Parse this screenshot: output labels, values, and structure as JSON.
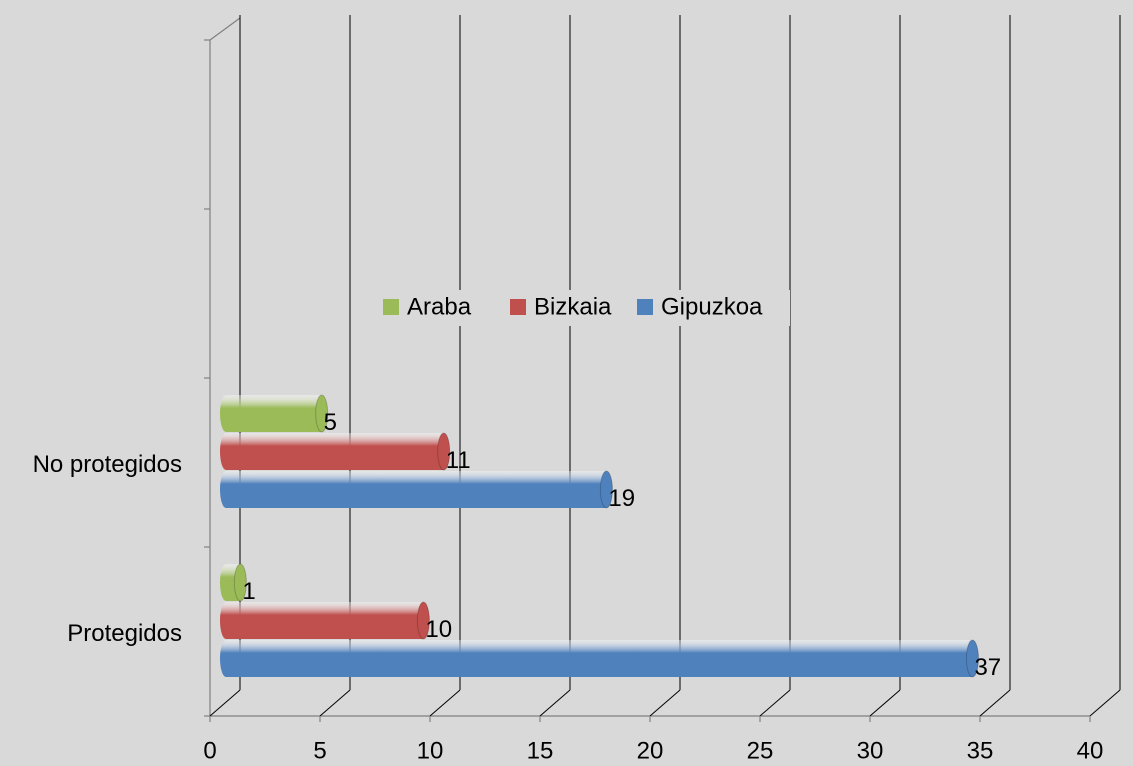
{
  "chart_data": {
    "type": "bar3d_horizontal",
    "categories": [
      "Protegidos",
      "No protegidos",
      null,
      null
    ],
    "series": [
      {
        "name": "Gipuzkoa",
        "color": "#4f81bd",
        "values": [
          37,
          19,
          null,
          null
        ]
      },
      {
        "name": "Bizkaia",
        "color": "#c0504d",
        "values": [
          10,
          11,
          null,
          null
        ]
      },
      {
        "name": "Araba",
        "color": "#9bbb59",
        "values": [
          1,
          5,
          null,
          null
        ]
      }
    ],
    "xlim": [
      0,
      40
    ],
    "xticks": [
      0,
      5,
      10,
      15,
      20,
      25,
      30,
      35,
      40
    ],
    "grid": true,
    "legend": "center"
  }
}
